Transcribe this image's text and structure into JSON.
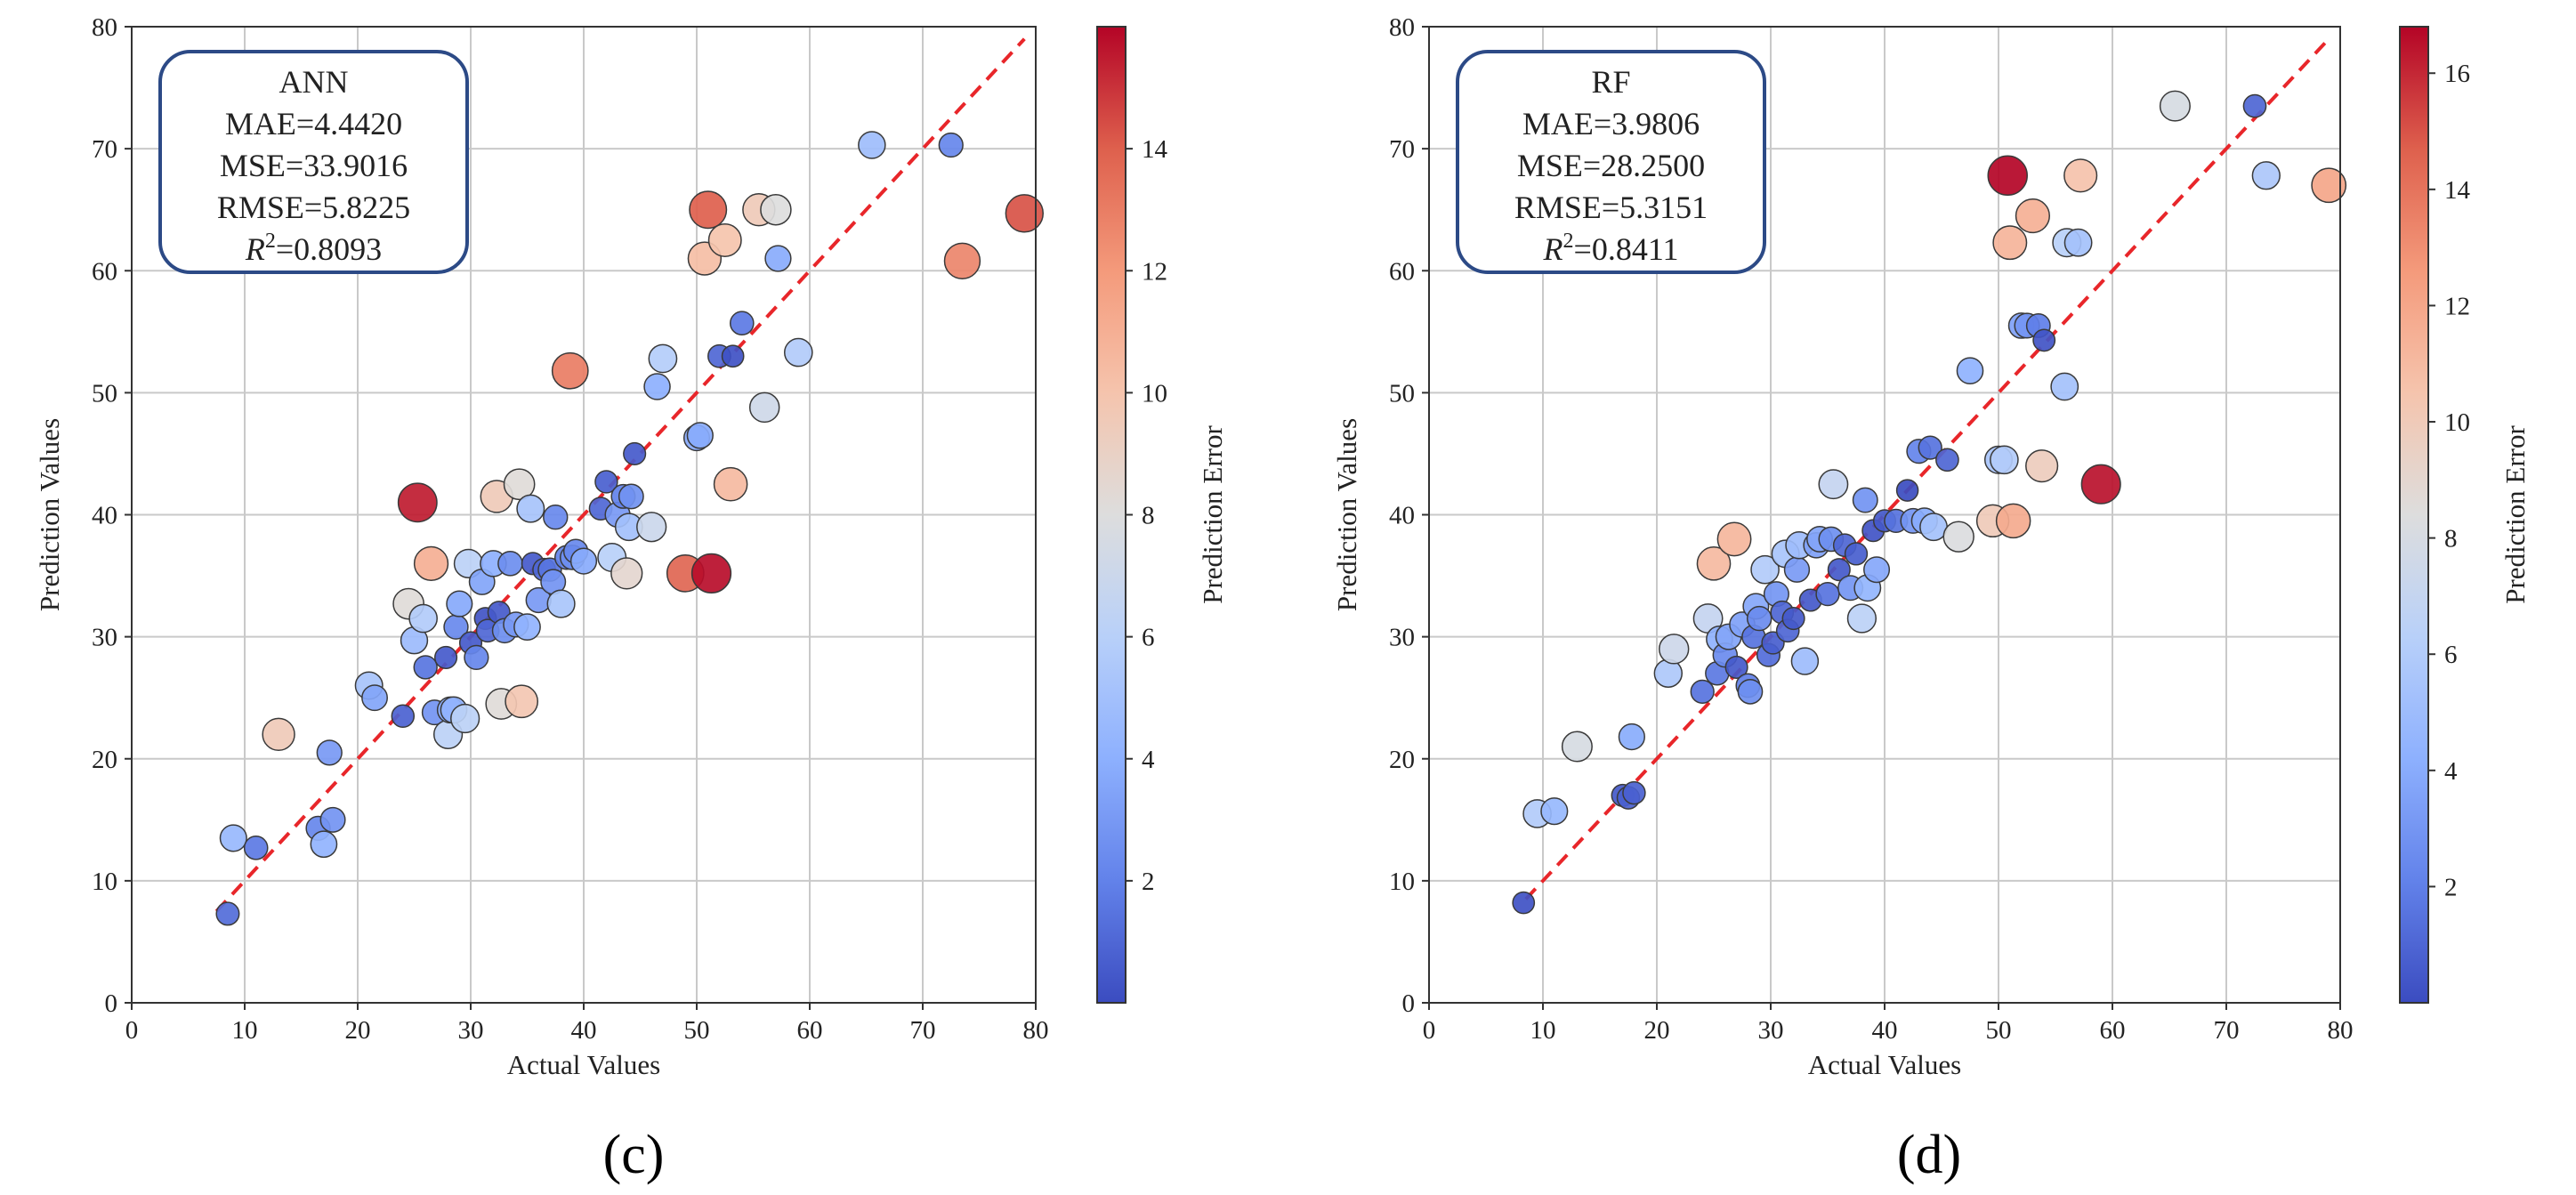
{
  "chart_data": [
    {
      "type": "scatter",
      "panel_label": "(c)",
      "xlabel": "Actual Values",
      "ylabel": "Prediction Values",
      "xlim": [
        0,
        80
      ],
      "ylim": [
        0,
        80
      ],
      "xticks": [
        "0",
        "10",
        "20",
        "30",
        "40",
        "50",
        "60",
        "70",
        "80"
      ],
      "yticks": [
        "0",
        "10",
        "20",
        "30",
        "40",
        "50",
        "60",
        "70",
        "80"
      ],
      "grid": true,
      "reference_line": {
        "from": [
          7.5,
          7.5
        ],
        "to": [
          79,
          79
        ],
        "style": "dashed",
        "color": "#e8262a"
      },
      "stats_box": {
        "lines": [
          "ANN",
          "MAE=4.4420",
          "MSE=33.9016",
          "RMSE=5.8225"
        ],
        "r2_label": "R",
        "r2_value": "=0.8093"
      },
      "colorbar": {
        "label": "Prediction Error",
        "min": 0,
        "max": 16,
        "ticks": [
          "2",
          "4",
          "6",
          "8",
          "10",
          "12",
          "14"
        ]
      },
      "points": [
        [
          8.5,
          7.3,
          1.2
        ],
        [
          9,
          13.5,
          4.5
        ],
        [
          11,
          12.7,
          1.7
        ],
        [
          13,
          22,
          9.5
        ],
        [
          16.5,
          14.3,
          2.2
        ],
        [
          17,
          13,
          4.2
        ],
        [
          17.5,
          20.5,
          3
        ],
        [
          17.8,
          15,
          2.8
        ],
        [
          21,
          26,
          5.2
        ],
        [
          21.5,
          25,
          3.5
        ],
        [
          24,
          23.5,
          0.8
        ],
        [
          24.5,
          32.7,
          8.2
        ],
        [
          25,
          29.7,
          4.7
        ],
        [
          25.3,
          41,
          15.5
        ],
        [
          25.8,
          31.5,
          5.7
        ],
        [
          26,
          27.5,
          1.5
        ],
        [
          26.5,
          36,
          11
        ],
        [
          26.8,
          23.8,
          2.8
        ],
        [
          27.8,
          28.3,
          0.5
        ],
        [
          28,
          22,
          6.2
        ],
        [
          28.2,
          24,
          4
        ],
        [
          28.5,
          24,
          4.2
        ],
        [
          28.7,
          30.8,
          2.3
        ],
        [
          29,
          32.7,
          3.7
        ],
        [
          29.5,
          23.3,
          6.2
        ],
        [
          29.8,
          36,
          6.2
        ],
        [
          30,
          29.5,
          0.5
        ],
        [
          30.5,
          28.3,
          2.2
        ],
        [
          31,
          34.5,
          3.5
        ],
        [
          31.3,
          31.5,
          0.3
        ],
        [
          31.5,
          30.5,
          1
        ],
        [
          32,
          36,
          4
        ],
        [
          32.3,
          41.5,
          9.5
        ],
        [
          32.5,
          32,
          0.5
        ],
        [
          32.7,
          24.5,
          8.2
        ],
        [
          33,
          30.5,
          2.5
        ],
        [
          33.5,
          36,
          2.5
        ],
        [
          34,
          31,
          3
        ],
        [
          34.3,
          42.5,
          8.2
        ],
        [
          34.5,
          24.7,
          9.8
        ],
        [
          35,
          30.8,
          4.2
        ],
        [
          35.3,
          40.5,
          5.2
        ],
        [
          35.5,
          36,
          0.5
        ],
        [
          36,
          33,
          3
        ],
        [
          36.5,
          35.5,
          1
        ],
        [
          37,
          35.5,
          1.5
        ],
        [
          37.3,
          34.5,
          2.8
        ],
        [
          37.5,
          39.8,
          2.3
        ],
        [
          38,
          32.7,
          5.3
        ],
        [
          38.5,
          36.5,
          2
        ],
        [
          38.8,
          51.8,
          13
        ],
        [
          39,
          36.5,
          2.5
        ],
        [
          39.3,
          37,
          2.3
        ],
        [
          40,
          36.2,
          3.8
        ],
        [
          41.5,
          40.5,
          1
        ],
        [
          42,
          42.7,
          0.7
        ],
        [
          42.5,
          36.5,
          6
        ],
        [
          43,
          40,
          3
        ],
        [
          43.5,
          41.5,
          2
        ],
        [
          43.8,
          35.2,
          8.6
        ],
        [
          44,
          39,
          5
        ],
        [
          44.2,
          41.5,
          2.7
        ],
        [
          44.5,
          45,
          0.5
        ],
        [
          46,
          39,
          7
        ],
        [
          46.5,
          50.5,
          4
        ],
        [
          47,
          52.8,
          5.8
        ],
        [
          49,
          35.2,
          13.8
        ],
        [
          50,
          46.3,
          3.7
        ],
        [
          50.3,
          46.5,
          3.8
        ],
        [
          50.7,
          61,
          10.3
        ],
        [
          51,
          65,
          14
        ],
        [
          51.3,
          35.2,
          15.8
        ],
        [
          52,
          53,
          1
        ],
        [
          52.5,
          62.5,
          10
        ],
        [
          53,
          42.5,
          10.5
        ],
        [
          53.2,
          53,
          0.2
        ],
        [
          54,
          55.7,
          1.7
        ],
        [
          55.5,
          65,
          9.5
        ],
        [
          56,
          48.8,
          7.2
        ],
        [
          57,
          65,
          8
        ],
        [
          57.2,
          61,
          3.8
        ],
        [
          59,
          53.3,
          5.7
        ],
        [
          65.5,
          70.3,
          4.8
        ],
        [
          72.5,
          70.3,
          2.2
        ],
        [
          73.5,
          60.8,
          12.7
        ],
        [
          79,
          64.7,
          14.3
        ]
      ]
    },
    {
      "type": "scatter",
      "panel_label": "(d)",
      "xlabel": "Actual Values",
      "ylabel": "Prediction Values",
      "xlim": [
        0,
        80
      ],
      "ylim": [
        0,
        80
      ],
      "xticks": [
        "0",
        "10",
        "20",
        "30",
        "40",
        "50",
        "60",
        "70",
        "80"
      ],
      "yticks": [
        "0",
        "10",
        "20",
        "30",
        "40",
        "50",
        "60",
        "70",
        "80"
      ],
      "grid": true,
      "reference_line": {
        "from": [
          8.5,
          8.5
        ],
        "to": [
          79,
          79
        ],
        "style": "dashed",
        "color": "#e8262a"
      },
      "stats_box": {
        "lines": [
          "RF",
          "MAE=3.9806",
          "MSE=28.2500",
          "RMSE=5.3151"
        ],
        "r2_label": "R",
        "r2_value": "=0.8411"
      },
      "colorbar": {
        "label": "Prediction Error",
        "min": 0,
        "max": 16.8,
        "ticks": [
          "2",
          "4",
          "6",
          "8",
          "10",
          "12",
          "14",
          "16"
        ]
      },
      "points": [
        [
          8.3,
          8.2,
          0.2
        ],
        [
          9.5,
          15.5,
          6
        ],
        [
          11,
          15.7,
          4.7
        ],
        [
          13,
          21,
          8
        ],
        [
          17,
          17,
          0.5
        ],
        [
          17.5,
          16.8,
          0.8
        ],
        [
          17.8,
          21.8,
          4
        ],
        [
          18,
          17.2,
          0.8
        ],
        [
          21,
          27,
          5.8
        ],
        [
          21.5,
          29,
          7.5
        ],
        [
          24,
          25.5,
          1.5
        ],
        [
          24.5,
          31.5,
          7
        ],
        [
          25,
          36,
          11
        ],
        [
          25.3,
          27,
          1.7
        ],
        [
          25.5,
          29.8,
          4.3
        ],
        [
          26,
          28.5,
          2.5
        ],
        [
          26.3,
          30,
          3.7
        ],
        [
          26.8,
          38,
          11.2
        ],
        [
          27,
          27.5,
          0.5
        ],
        [
          27.5,
          31,
          3.5
        ],
        [
          28,
          26,
          2
        ],
        [
          28.2,
          25.5,
          2.7
        ],
        [
          28.5,
          30,
          1.5
        ],
        [
          28.7,
          32.5,
          3.8
        ],
        [
          29,
          31.5,
          2.5
        ],
        [
          29.5,
          35.5,
          6
        ],
        [
          29.8,
          28.5,
          1.3
        ],
        [
          30.2,
          29.5,
          0.7
        ],
        [
          30.5,
          33.5,
          3
        ],
        [
          31,
          32,
          1
        ],
        [
          31.3,
          36.8,
          5.5
        ],
        [
          31.5,
          30.5,
          1
        ],
        [
          32,
          31.5,
          0.5
        ],
        [
          32.3,
          35.5,
          3.2
        ],
        [
          32.5,
          37.5,
          5
        ],
        [
          33,
          28,
          5
        ],
        [
          33.5,
          33,
          0.5
        ],
        [
          34,
          37.5,
          3.5
        ],
        [
          34.3,
          38,
          3.7
        ],
        [
          35,
          33.5,
          1.5
        ],
        [
          35.3,
          38,
          2.7
        ],
        [
          35.5,
          42.5,
          7
        ],
        [
          36,
          35.5,
          0.5
        ],
        [
          36.5,
          37.5,
          1
        ],
        [
          37,
          34,
          3
        ],
        [
          37.5,
          36.8,
          0.7
        ],
        [
          38,
          31.5,
          6.5
        ],
        [
          38.3,
          41.2,
          2.9
        ],
        [
          38.5,
          34,
          4.5
        ],
        [
          39,
          38.7,
          0.3
        ],
        [
          39.3,
          35.5,
          3.8
        ],
        [
          40,
          39.5,
          0.5
        ],
        [
          41,
          39.5,
          1.5
        ],
        [
          42,
          42,
          0
        ],
        [
          42.5,
          39.5,
          3
        ],
        [
          43,
          45.2,
          2.2
        ],
        [
          43.5,
          39.5,
          4
        ],
        [
          44,
          45.5,
          1.5
        ],
        [
          44.3,
          39,
          5.3
        ],
        [
          45.5,
          44.5,
          1
        ],
        [
          46.5,
          38.2,
          8.3
        ],
        [
          47.5,
          51.8,
          4.3
        ],
        [
          49.5,
          39.5,
          10
        ],
        [
          50,
          44.5,
          5.5
        ],
        [
          50.5,
          44.5,
          6
        ],
        [
          50.8,
          67.8,
          16.8
        ],
        [
          51,
          62.3,
          11.3
        ],
        [
          51.3,
          39.5,
          11.8
        ],
        [
          52,
          55.5,
          3.5
        ],
        [
          52.5,
          55.5,
          3
        ],
        [
          53,
          64.5,
          11.5
        ],
        [
          53.5,
          55.5,
          2
        ],
        [
          53.8,
          44,
          9.8
        ],
        [
          54,
          54.3,
          0.3
        ],
        [
          55.8,
          50.5,
          5.3
        ],
        [
          56,
          62.3,
          6.3
        ],
        [
          57,
          62.3,
          5.3
        ],
        [
          57.2,
          67.8,
          10.6
        ],
        [
          59,
          42.5,
          16.5
        ],
        [
          65.5,
          73.5,
          8
        ],
        [
          72.5,
          73.5,
          1
        ],
        [
          73.5,
          67.8,
          5.7
        ],
        [
          79,
          67,
          12
        ]
      ]
    }
  ]
}
